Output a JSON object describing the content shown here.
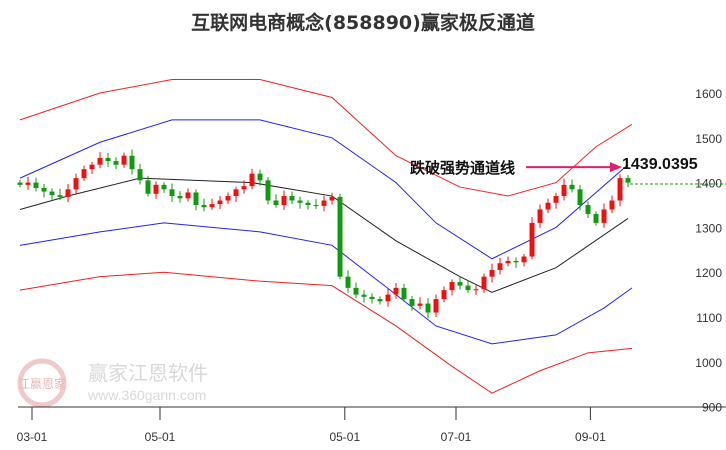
{
  "chart_data": {
    "type": "candlestick",
    "title": "互联网电商概念(858890)赢家极反通道",
    "ylim": [
      900,
      1600
    ],
    "yticks": [
      900,
      1000,
      1100,
      1200,
      1300,
      1400,
      1500,
      1600
    ],
    "xticks": [
      {
        "label": "03-01",
        "idx": 1.5
      },
      {
        "label": "05-01",
        "idx": 17.5
      },
      {
        "label": "05-01",
        "idx": 40.6
      },
      {
        "label": "07-01",
        "idx": 54.5
      },
      {
        "label": "09-01",
        "idx": 71.3
      }
    ],
    "closes": [
      1395,
      1400,
      1388,
      1380,
      1372,
      1368,
      1385,
      1410,
      1430,
      1440,
      1455,
      1448,
      1440,
      1460,
      1430,
      1405,
      1375,
      1395,
      1385,
      1370,
      1365,
      1378,
      1350,
      1345,
      1352,
      1360,
      1370,
      1385,
      1392,
      1420,
      1405,
      1360,
      1350,
      1370,
      1360,
      1355,
      1350,
      1348,
      1360,
      1368,
      1190,
      1165,
      1150,
      1145,
      1140,
      1135,
      1150,
      1165,
      1140,
      1125,
      1130,
      1110,
      1140,
      1160,
      1178,
      1170,
      1160,
      1162,
      1190,
      1205,
      1220,
      1225,
      1222,
      1235,
      1310,
      1340,
      1355,
      1370,
      1395,
      1385,
      1350,
      1330,
      1310,
      1340,
      1360,
      1410,
      1400
    ],
    "channels": [
      {
        "name": "middle",
        "color": "#222222",
        "points": [
          [
            0,
            1340
          ],
          [
            6,
            1370
          ],
          [
            15,
            1410
          ],
          [
            29,
            1400
          ],
          [
            39,
            1370
          ],
          [
            47,
            1270
          ],
          [
            55,
            1190
          ],
          [
            59,
            1155
          ],
          [
            67,
            1210
          ],
          [
            76,
            1320
          ]
        ]
      },
      {
        "name": "upper-blue",
        "color": "#2222ee",
        "points": [
          [
            0,
            1410
          ],
          [
            10,
            1490
          ],
          [
            19,
            1540
          ],
          [
            30,
            1540
          ],
          [
            39,
            1500
          ],
          [
            47,
            1400
          ],
          [
            52,
            1310
          ],
          [
            59,
            1230
          ],
          [
            67,
            1300
          ],
          [
            76,
            1440
          ]
        ]
      },
      {
        "name": "lower-blue",
        "color": "#2222ee",
        "points": [
          [
            0,
            1260
          ],
          [
            10,
            1290
          ],
          [
            18,
            1310
          ],
          [
            30,
            1290
          ],
          [
            39,
            1260
          ],
          [
            47,
            1150
          ],
          [
            52,
            1080
          ],
          [
            59,
            1040
          ],
          [
            67,
            1060
          ],
          [
            73,
            1120
          ],
          [
            76.5,
            1165
          ]
        ]
      },
      {
        "name": "upper-red",
        "color": "#ee2222",
        "points": [
          [
            0,
            1540
          ],
          [
            10,
            1600
          ],
          [
            19,
            1630
          ],
          [
            30,
            1630
          ],
          [
            39,
            1590
          ],
          [
            47,
            1460
          ],
          [
            55,
            1390
          ],
          [
            61,
            1370
          ],
          [
            67,
            1400
          ],
          [
            72,
            1480
          ],
          [
            76.5,
            1530
          ]
        ]
      },
      {
        "name": "lower-red",
        "color": "#ee2222",
        "points": [
          [
            0,
            1160
          ],
          [
            10,
            1190
          ],
          [
            18,
            1200
          ],
          [
            30,
            1180
          ],
          [
            39,
            1170
          ],
          [
            47,
            1080
          ],
          [
            54,
            990
          ],
          [
            59,
            930
          ],
          [
            65,
            980
          ],
          [
            71,
            1020
          ],
          [
            76.5,
            1030
          ]
        ]
      }
    ],
    "annotation": {
      "text": "跌破强势通道线",
      "value_label": "1439.0395",
      "value": 1439.0395,
      "color": "#e0206a",
      "ref_value": 1397
    }
  },
  "watermark": {
    "name": "赢家江恩软件",
    "url": "www.360gann.com",
    "logo": "江赢恩家"
  }
}
